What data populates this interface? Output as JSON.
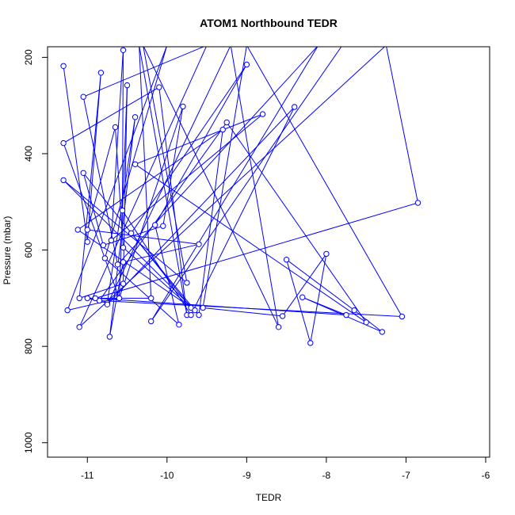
{
  "chart_data": {
    "type": "line",
    "title": "ATOM1 Northbound TEDR",
    "xlabel": "TEDR",
    "ylabel": "Pressure (mbar)",
    "xlim": [
      -11.5,
      -5.95
    ],
    "ylim": [
      1030,
      178
    ],
    "y_reversed": true,
    "x_ticks": [
      -11,
      -10,
      -9,
      -8,
      -7,
      -6
    ],
    "y_ticks": [
      200,
      400,
      600,
      800,
      1000
    ],
    "line_color": "#0000ff",
    "marker": "open-circle",
    "grid": false,
    "legend": "none",
    "series": [
      {
        "points": [
          [
            -11.3,
            218
          ],
          [
            -11.0,
            583
          ],
          [
            -10.83,
            232
          ],
          [
            -11.1,
            700
          ],
          [
            -10.55,
            670
          ],
          [
            -10.5,
            258
          ],
          [
            -10.6,
            700
          ],
          [
            -11.3,
            378
          ],
          [
            -10.1,
            262
          ],
          [
            -9.75,
            735
          ],
          [
            -10.35,
            175
          ],
          [
            -10.2,
            700
          ],
          [
            -11.0,
            700
          ],
          [
            -10.75,
            710
          ],
          [
            -10.4,
            324
          ],
          [
            -10.72,
            780
          ],
          [
            -10.55,
            625
          ],
          [
            -9.6,
            588
          ],
          [
            -11.0,
            558
          ],
          [
            -10.65,
            345
          ],
          [
            -10.55,
            595
          ],
          [
            -9.7,
            720
          ],
          [
            -11.05,
            440
          ],
          [
            -10.8,
            590
          ],
          [
            -10.05,
            550
          ],
          [
            -9.8,
            302
          ],
          [
            -10.6,
            700
          ],
          [
            -11.25,
            725
          ],
          [
            -10.0,
            175
          ],
          [
            -10.78,
            617
          ],
          [
            -9.85,
            755
          ],
          [
            -10.15,
            548
          ],
          [
            -9.0,
            215
          ],
          [
            -10.45,
            565
          ],
          [
            -9.6,
            735
          ],
          [
            -9.3,
            350
          ],
          [
            -11.12,
            558
          ],
          [
            -9.65,
            725
          ],
          [
            -11.3,
            455
          ],
          [
            -9.75,
            668
          ],
          [
            -10.3,
            175
          ],
          [
            -8.6,
            760
          ],
          [
            -9.2,
            175
          ],
          [
            -10.75,
            713
          ],
          [
            -8.4,
            303
          ],
          [
            -9.7,
            735
          ],
          [
            -10.56,
            518
          ],
          [
            -10.55,
            185
          ],
          [
            -10.7,
            580
          ],
          [
            -8.8,
            318
          ],
          [
            -10.4,
            422
          ],
          [
            -7.5,
            750
          ],
          [
            -9.25,
            335
          ],
          [
            -10.85,
            705
          ],
          [
            -7.05,
            738
          ],
          [
            -9.0,
            175
          ],
          [
            -9.55,
            720
          ],
          [
            -8.55,
            737
          ],
          [
            -8.0,
            608
          ],
          [
            -8.2,
            793
          ],
          [
            -8.5,
            620
          ],
          [
            -7.65,
            725
          ],
          [
            -7.3,
            770
          ],
          [
            -8.3,
            698
          ],
          [
            -7.75,
            735
          ],
          [
            -10.9,
            700
          ],
          [
            -6.85,
            502
          ],
          [
            -7.25,
            175
          ],
          [
            -11.1,
            760
          ],
          [
            -9.5,
            175
          ],
          [
            -11.05,
            282
          ],
          [
            -10.62,
            630
          ],
          [
            -8.1,
            175
          ],
          [
            -10.2,
            748
          ],
          [
            -7.8,
            175
          ]
        ]
      }
    ]
  }
}
